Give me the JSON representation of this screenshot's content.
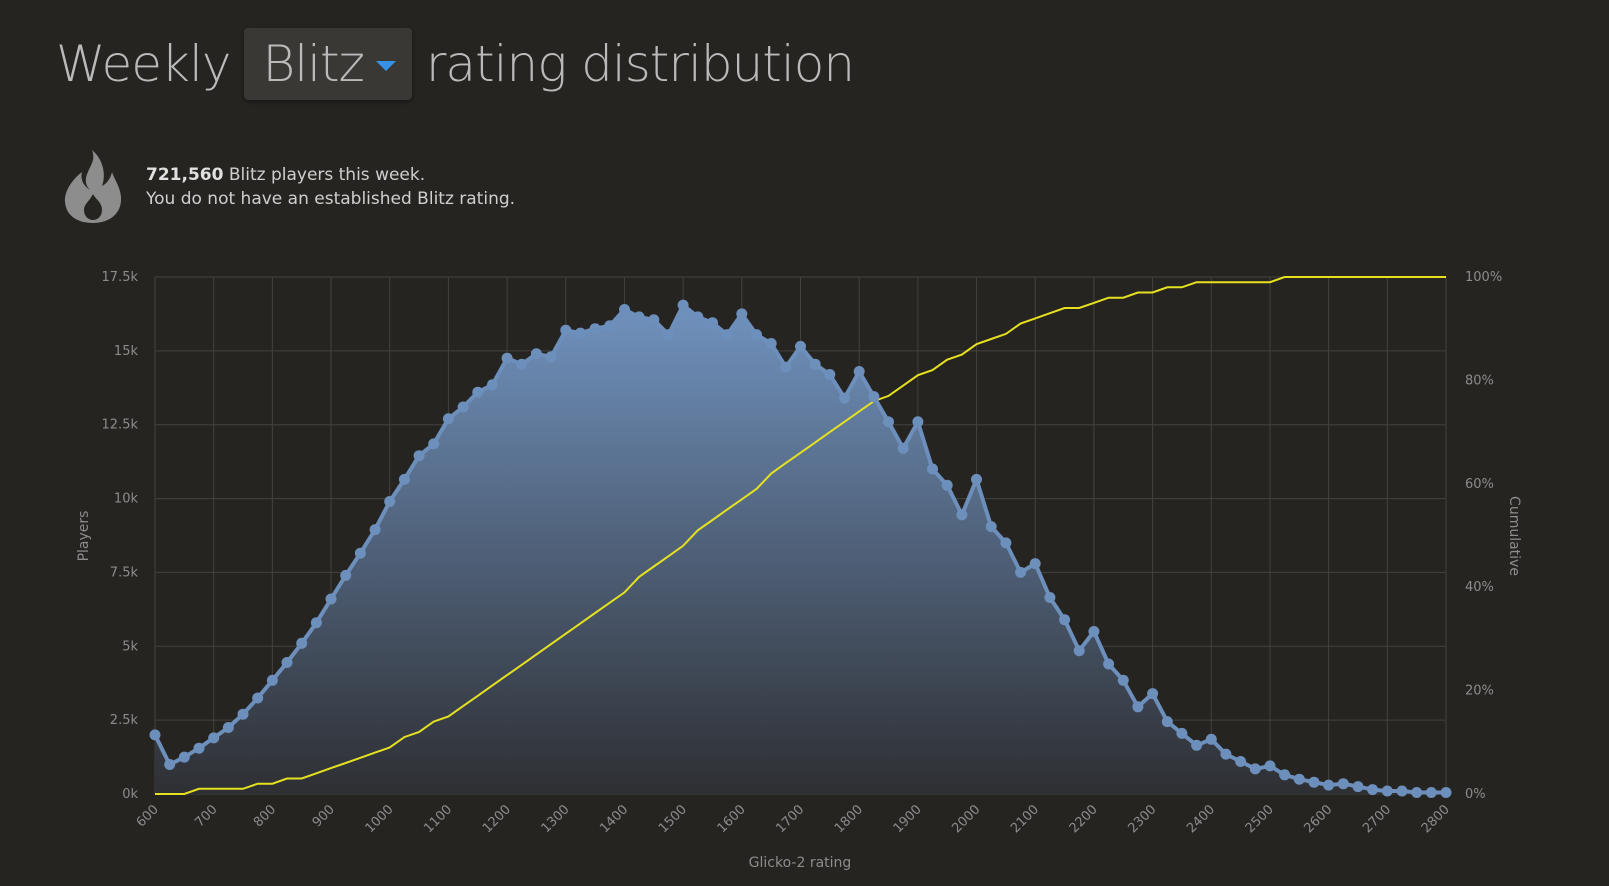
{
  "header": {
    "title_prefix": "Weekly",
    "perf_type": "Blitz",
    "title_suffix": "rating distribution"
  },
  "info": {
    "player_count": "721,560",
    "count_text": "Blitz players this week.",
    "status_text": "You do not have an established Blitz rating.",
    "icon": "flame-icon"
  },
  "chart_data": {
    "type": "area",
    "xlabel": "Glicko-2 rating",
    "ylabel": "Players",
    "y2label": "Cumulative",
    "xlim": [
      600,
      2800
    ],
    "ylim": [
      0,
      17500
    ],
    "y2lim": [
      0,
      100
    ],
    "x_ticks": [
      600,
      700,
      800,
      900,
      1000,
      1100,
      1200,
      1300,
      1400,
      1500,
      1600,
      1700,
      1800,
      1900,
      2000,
      2100,
      2200,
      2300,
      2400,
      2500,
      2600,
      2700,
      2800
    ],
    "y_ticks": [
      "0k",
      "2.5k",
      "5k",
      "7.5k",
      "10k",
      "12.5k",
      "15k",
      "17.5k"
    ],
    "y2_ticks": [
      "0%",
      "20%",
      "40%",
      "60%",
      "80%",
      "100%"
    ],
    "grid": true,
    "colors": {
      "players": "#6d8fbb",
      "cumulative": "#e5e120",
      "grid": "#44423f"
    },
    "x": [
      600,
      625,
      650,
      675,
      700,
      725,
      750,
      775,
      800,
      825,
      850,
      875,
      900,
      925,
      950,
      975,
      1000,
      1025,
      1050,
      1075,
      1100,
      1125,
      1150,
      1175,
      1200,
      1225,
      1250,
      1275,
      1300,
      1325,
      1350,
      1375,
      1400,
      1425,
      1450,
      1475,
      1500,
      1525,
      1550,
      1575,
      1600,
      1625,
      1650,
      1675,
      1700,
      1725,
      1750,
      1775,
      1800,
      1825,
      1850,
      1875,
      1900,
      1925,
      1950,
      1975,
      2000,
      2025,
      2050,
      2075,
      2100,
      2125,
      2150,
      2175,
      2200,
      2225,
      2250,
      2275,
      2300,
      2325,
      2350,
      2375,
      2400,
      2425,
      2450,
      2475,
      2500,
      2525,
      2550,
      2575,
      2600,
      2625,
      2650,
      2675,
      2700,
      2725,
      2750,
      2775,
      2800
    ],
    "series": [
      {
        "name": "Players",
        "values": [
          2000,
          1000,
          1250,
          1550,
          1900,
          2250,
          2700,
          3250,
          3850,
          4450,
          5100,
          5800,
          6600,
          7400,
          8150,
          8950,
          9900,
          10650,
          11450,
          11850,
          12700,
          13100,
          13600,
          13850,
          14750,
          14550,
          14900,
          14800,
          15700,
          15600,
          15750,
          15850,
          16400,
          16150,
          16050,
          15550,
          16550,
          16150,
          15950,
          15550,
          16250,
          15550,
          15250,
          14450,
          15150,
          14550,
          14200,
          13400,
          14300,
          13450,
          12600,
          11700,
          12600,
          11000,
          10450,
          9450,
          10650,
          9050,
          8500,
          7500,
          7800,
          6650,
          5900,
          4850,
          5500,
          4400,
          3850,
          2950,
          3400,
          2450,
          2050,
          1650,
          1850,
          1350,
          1100,
          850,
          950,
          650,
          500,
          400,
          300,
          350,
          250,
          150,
          100,
          100,
          50,
          50,
          50
        ]
      },
      {
        "name": "Cumulative",
        "axis": "right",
        "values": [
          0,
          0,
          0,
          1,
          1,
          1,
          1,
          2,
          2,
          3,
          3,
          4,
          5,
          6,
          7,
          8,
          9,
          11,
          12,
          14,
          15,
          17,
          19,
          21,
          23,
          25,
          27,
          29,
          31,
          33,
          35,
          37,
          39,
          42,
          44,
          46,
          48,
          51,
          53,
          55,
          57,
          59,
          62,
          64,
          66,
          68,
          70,
          72,
          74,
          76,
          77,
          79,
          81,
          82,
          84,
          85,
          87,
          88,
          89,
          91,
          92,
          93,
          94,
          94,
          95,
          96,
          96,
          97,
          97,
          98,
          98,
          99,
          99,
          99,
          99,
          99,
          99,
          100,
          100,
          100,
          100,
          100,
          100,
          100,
          100,
          100,
          100,
          100,
          100
        ]
      }
    ]
  }
}
